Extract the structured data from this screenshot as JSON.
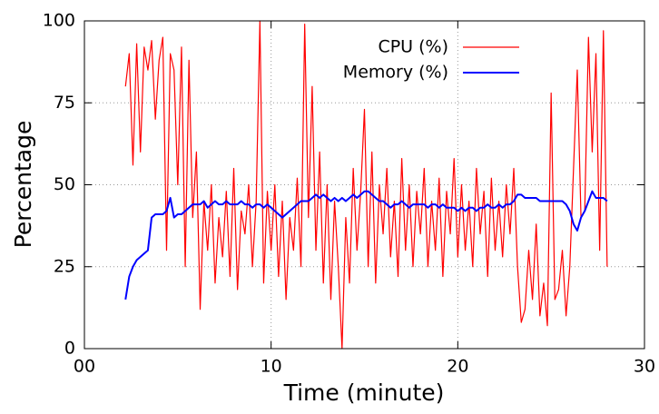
{
  "chart_data": {
    "type": "line",
    "x_label": "Time (minute)",
    "y_label": "Percentage",
    "xlim": [
      0,
      30
    ],
    "xticks": [
      {
        "value": 0,
        "label": "00"
      },
      10,
      20,
      30
    ],
    "ylim": [
      0,
      100
    ],
    "yticks": [
      0,
      25,
      50,
      75,
      100
    ],
    "grid": true,
    "legend": "top right",
    "x": [
      2.2,
      2.4,
      2.6,
      2.8,
      3.0,
      3.2,
      3.4,
      3.6,
      3.8,
      4.0,
      4.2,
      4.4,
      4.6,
      4.8,
      5.0,
      5.2,
      5.4,
      5.6,
      5.8,
      6.0,
      6.2,
      6.4,
      6.6,
      6.8,
      7.0,
      7.2,
      7.4,
      7.6,
      7.8,
      8.0,
      8.2,
      8.4,
      8.6,
      8.8,
      9.0,
      9.2,
      9.4,
      9.6,
      9.8,
      10.0,
      10.2,
      10.4,
      10.6,
      10.8,
      11.0,
      11.2,
      11.4,
      11.6,
      11.8,
      12.0,
      12.2,
      12.4,
      12.6,
      12.8,
      13.0,
      13.2,
      13.4,
      13.6,
      13.8,
      14.0,
      14.2,
      14.4,
      14.6,
      14.8,
      15.0,
      15.2,
      15.4,
      15.6,
      15.8,
      16.0,
      16.2,
      16.4,
      16.6,
      16.8,
      17.0,
      17.2,
      17.4,
      17.6,
      17.8,
      18.0,
      18.2,
      18.4,
      18.6,
      18.8,
      19.0,
      19.2,
      19.4,
      19.6,
      19.8,
      20.0,
      20.2,
      20.4,
      20.6,
      20.8,
      21.0,
      21.2,
      21.4,
      21.6,
      21.8,
      22.0,
      22.2,
      22.4,
      22.6,
      22.8,
      23.0,
      23.2,
      23.4,
      23.6,
      23.8,
      24.0,
      24.2,
      24.4,
      24.6,
      24.8,
      25.0,
      25.2,
      25.4,
      25.6,
      25.8,
      26.0,
      26.2,
      26.4,
      26.6,
      26.8,
      27.0,
      27.2,
      27.4,
      27.6,
      27.8,
      28.0
    ],
    "series": [
      {
        "name": "CPU (%)",
        "color": "#ff0000",
        "values": [
          80,
          90,
          56,
          93,
          60,
          92,
          85,
          94,
          70,
          88,
          95,
          30,
          90,
          85,
          50,
          92,
          25,
          88,
          40,
          60,
          12,
          45,
          30,
          50,
          20,
          40,
          28,
          48,
          22,
          55,
          18,
          42,
          35,
          50,
          25,
          45,
          100,
          20,
          48,
          30,
          50,
          22,
          45,
          15,
          40,
          30,
          52,
          25,
          99,
          40,
          80,
          30,
          60,
          20,
          50,
          15,
          45,
          25,
          0,
          40,
          20,
          55,
          30,
          48,
          73,
          25,
          60,
          20,
          50,
          35,
          55,
          28,
          45,
          22,
          58,
          30,
          50,
          25,
          48,
          35,
          55,
          25,
          45,
          30,
          52,
          22,
          48,
          35,
          58,
          28,
          50,
          30,
          45,
          25,
          55,
          35,
          48,
          22,
          52,
          30,
          45,
          28,
          50,
          35,
          55,
          25,
          8,
          12,
          30,
          15,
          38,
          10,
          20,
          7,
          78,
          15,
          18,
          30,
          10,
          25,
          55,
          85,
          40,
          42,
          95,
          60,
          90,
          30,
          97,
          25
        ]
      },
      {
        "name": "Memory (%)",
        "color": "#0000ff",
        "values": [
          15,
          22,
          25,
          27,
          28,
          29,
          30,
          40,
          41,
          41,
          41,
          42,
          46,
          40,
          41,
          41,
          42,
          43,
          44,
          44,
          44,
          45,
          43,
          44,
          45,
          44,
          44,
          45,
          44,
          44,
          44,
          45,
          44,
          44,
          43,
          44,
          44,
          43,
          44,
          43,
          42,
          41,
          40,
          41,
          42,
          43,
          44,
          45,
          45,
          45,
          46,
          47,
          46,
          47,
          46,
          45,
          46,
          45,
          46,
          45,
          46,
          47,
          46,
          47,
          48,
          48,
          47,
          46,
          45,
          45,
          44,
          43,
          44,
          44,
          45,
          44,
          43,
          44,
          44,
          44,
          44,
          43,
          44,
          44,
          43,
          44,
          43,
          43,
          43,
          42,
          43,
          42,
          43,
          43,
          42,
          43,
          43,
          44,
          43,
          43,
          44,
          43,
          44,
          44,
          45,
          47,
          47,
          46,
          46,
          46,
          46,
          45,
          45,
          45,
          45,
          45,
          45,
          45,
          44,
          42,
          38,
          36,
          40,
          42,
          45,
          48,
          46,
          46,
          46,
          45
        ]
      }
    ]
  }
}
